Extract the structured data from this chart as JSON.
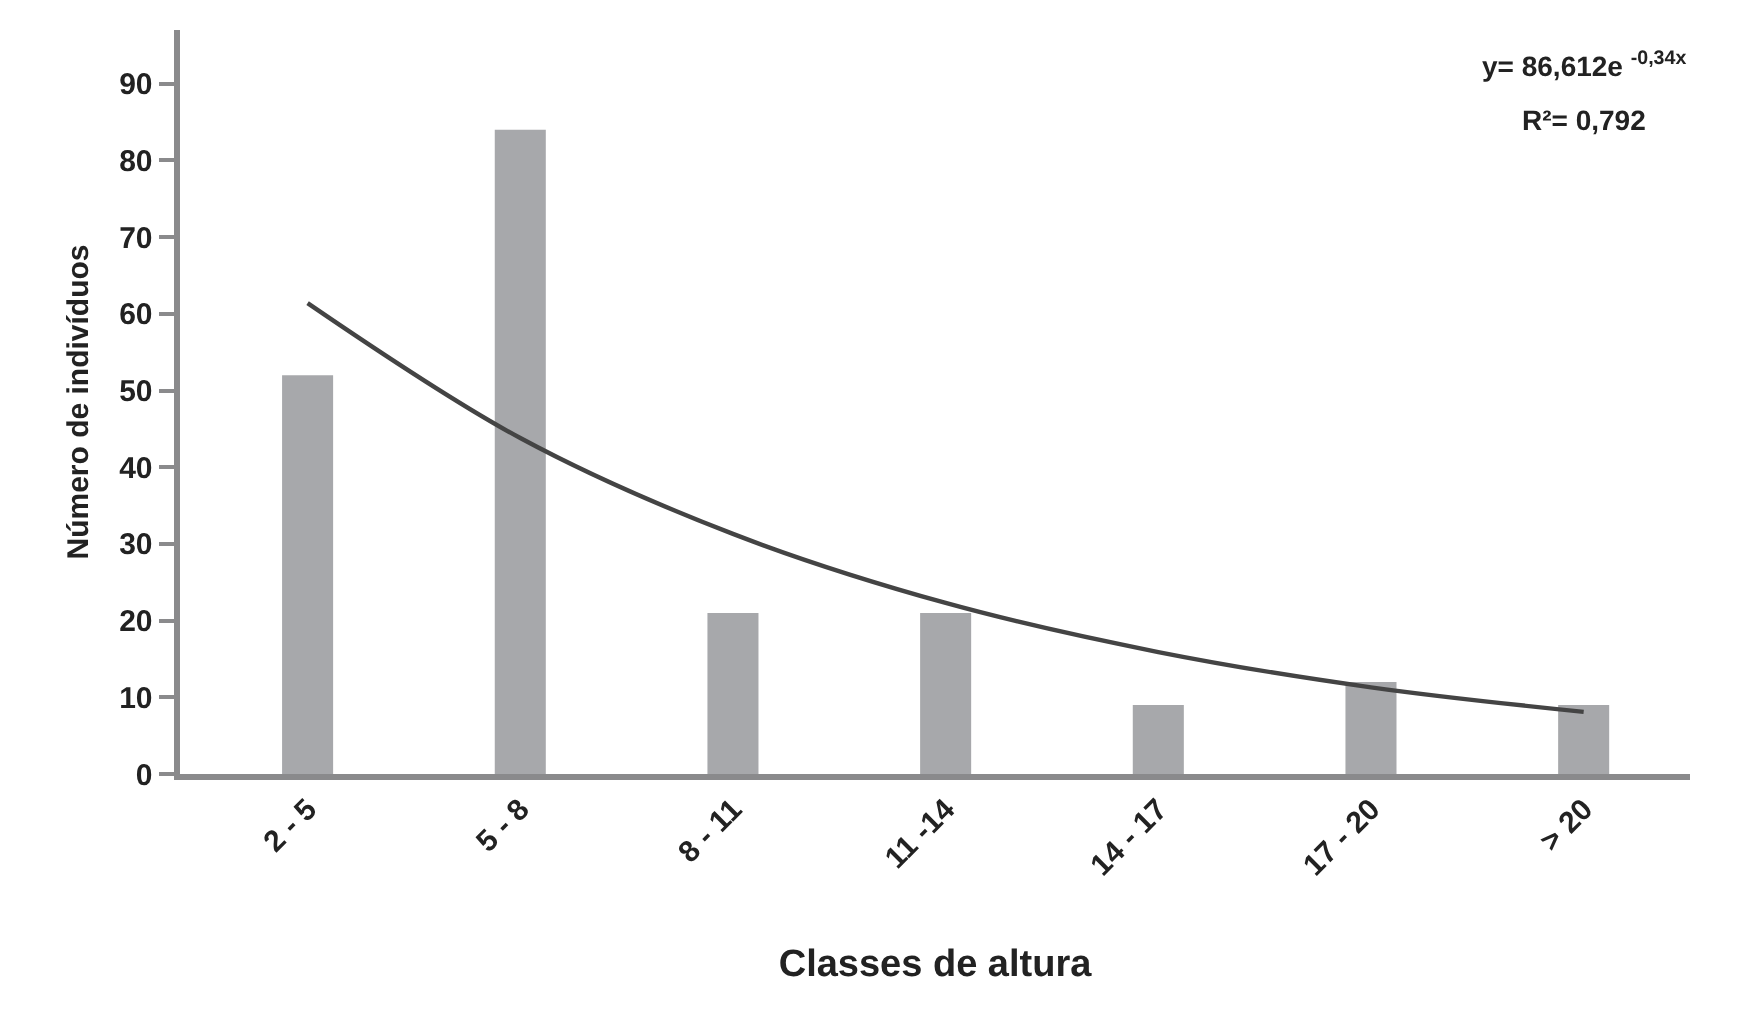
{
  "chart_data": {
    "type": "bar",
    "xlabel": "Classes de altura",
    "ylabel": "Número de indivíduos",
    "categories": [
      "2 - 5",
      "5 - 8",
      "8 - 11",
      "11 -14",
      "14 - 17",
      "17 - 20",
      "> 20"
    ],
    "series": [
      {
        "color": "#a7a8ab",
        "values": [
          52,
          84,
          21,
          21,
          9,
          12,
          9
        ]
      },
      {
        "type": "line",
        "color": "#444444",
        "x": [
          "2 - 5",
          "5 - 8",
          "8 - 11",
          "11 -14",
          "14 - 17",
          "17 - 20",
          "> 20"
        ],
        "values": [
          61.4,
          43.8,
          31.3,
          22.3,
          15.9,
          11.3,
          8.1
        ]
      }
    ],
    "annotations": [
      "y= 86,612e $^{-0,34x}$",
      "R²= 0,792"
    ],
    "ylim": [
      0,
      97
    ],
    "yticks": [
      0,
      10,
      20,
      30,
      40,
      50,
      60,
      70,
      80,
      90
    ],
    "grid": false,
    "marker": "none",
    "line_style": "solid"
  }
}
